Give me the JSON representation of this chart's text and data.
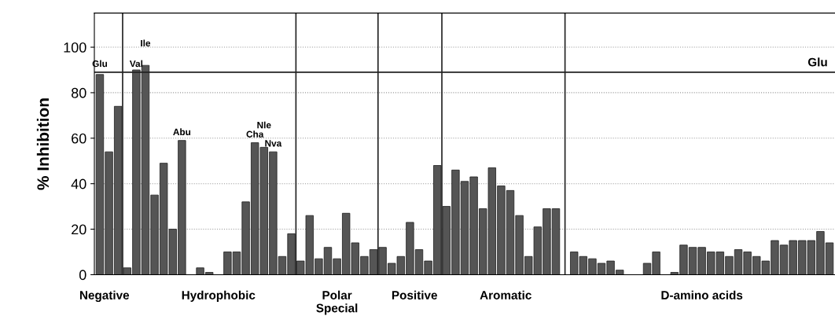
{
  "chart_data": {
    "type": "bar",
    "ylabel": "% Inhibition",
    "categories": [
      null,
      null,
      null,
      null,
      null,
      null,
      null,
      null,
      null,
      null,
      null,
      null,
      null,
      null,
      null,
      null,
      null,
      null,
      null,
      null,
      null,
      null,
      null,
      null,
      null,
      null,
      null,
      null,
      null,
      null,
      null,
      null,
      null,
      null,
      null,
      null,
      null,
      null,
      null,
      null,
      null,
      null,
      null,
      null,
      null,
      null,
      null,
      null,
      null,
      null,
      null,
      null,
      null,
      null,
      null,
      null,
      null,
      null,
      null,
      null,
      null,
      null,
      null,
      null,
      null,
      null,
      null,
      null,
      null,
      null,
      null,
      null,
      null,
      null,
      null,
      null,
      null,
      null,
      null,
      null,
      null
    ],
    "values": [
      88,
      54,
      74,
      3,
      90,
      92,
      35,
      49,
      20,
      59,
      null,
      3,
      1,
      null,
      10,
      10,
      32,
      58,
      56,
      54,
      8,
      18,
      6,
      26,
      7,
      12,
      7,
      27,
      14,
      8,
      11,
      12,
      5,
      8,
      23,
      11,
      6,
      48,
      30,
      46,
      41,
      43,
      29,
      47,
      39,
      37,
      26,
      8,
      21,
      29,
      29,
      null,
      10,
      8,
      7,
      5,
      6,
      2,
      null,
      null,
      5,
      10,
      null,
      1,
      13,
      12,
      12,
      10,
      10,
      8,
      11,
      10,
      8,
      6,
      15,
      13,
      15,
      15,
      15,
      19,
      14
    ],
    "value_labels": [
      "Glu",
      null,
      null,
      null,
      "Val",
      "Ile",
      null,
      null,
      null,
      "Abu",
      null,
      null,
      null,
      null,
      null,
      null,
      null,
      "Cha",
      "Nle",
      "Nva",
      null,
      null,
      null,
      null,
      null,
      null,
      null,
      null,
      null,
      null,
      null,
      null,
      null,
      null,
      null,
      null,
      null,
      null,
      null,
      null,
      null,
      null,
      null,
      null,
      null,
      null,
      null,
      null,
      null,
      null,
      null,
      null,
      null,
      null,
      null,
      null,
      null,
      null,
      null,
      null,
      null,
      null,
      null,
      null,
      null,
      null,
      null,
      null,
      null,
      null,
      null,
      null,
      null,
      null,
      null,
      null,
      null,
      null,
      null,
      null,
      null
    ],
    "color": "#555555",
    "ylim": [
      0,
      115
    ],
    "yticks": [
      0,
      20,
      40,
      60,
      80,
      100
    ],
    "grid": "y",
    "ref_lines": [
      {
        "axis": "y",
        "value": 89,
        "label": "Glu"
      }
    ],
    "annotations": [
      "Negative",
      "Hydrophobic",
      "Polar\nSpecial",
      "Positive",
      "Aromatic",
      "D-amino acids"
    ]
  }
}
